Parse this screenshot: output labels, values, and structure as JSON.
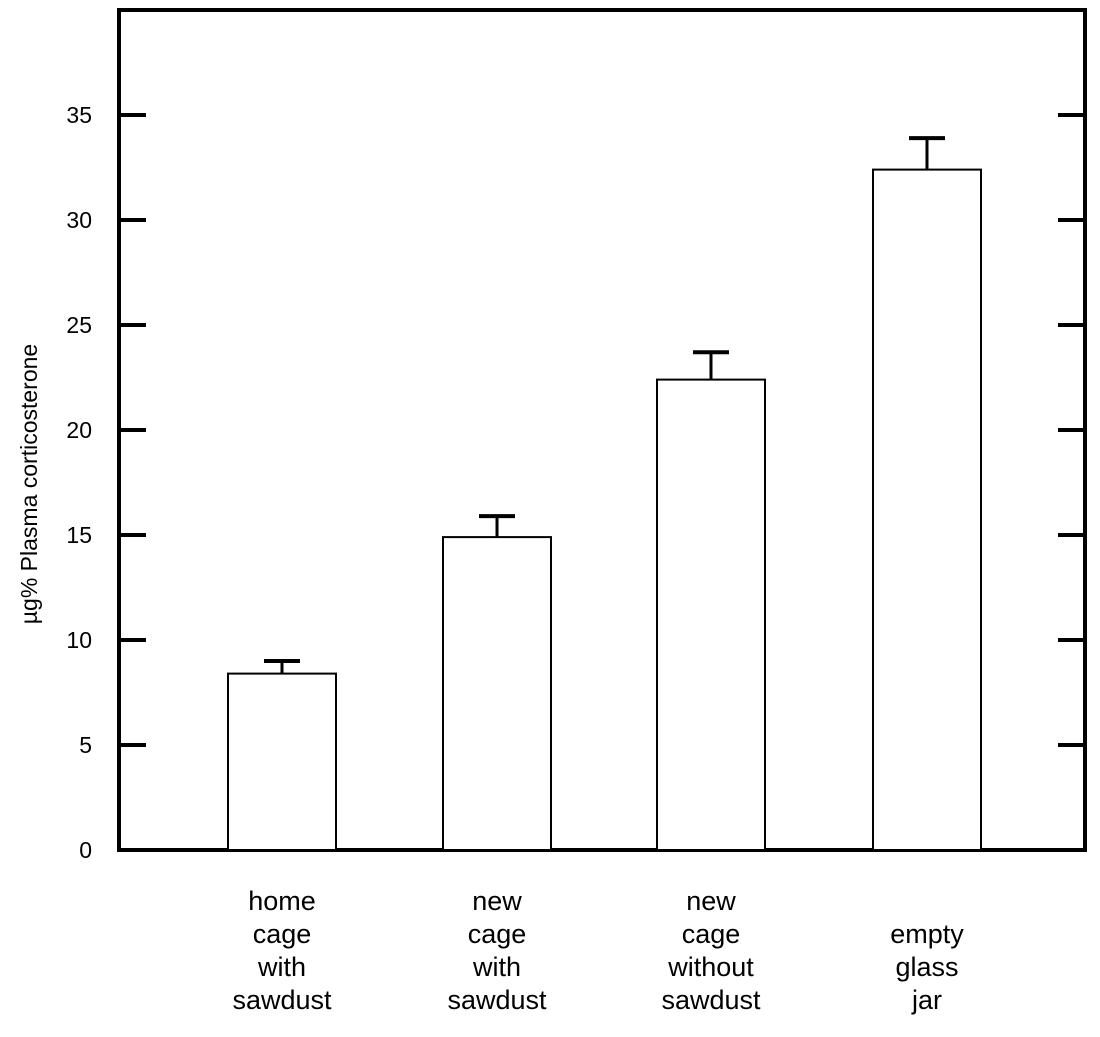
{
  "chart_data": {
    "type": "bar",
    "title": "",
    "xlabel": "",
    "ylabel": "µg% Plasma corticosterone",
    "ylim": [
      0,
      40
    ],
    "yticks": [
      0,
      5,
      10,
      15,
      20,
      25,
      30,
      35
    ],
    "grid": false,
    "categories": [
      [
        "home",
        "cage",
        "with",
        "sawdust"
      ],
      [
        "new",
        "cage",
        "with",
        "sawdust"
      ],
      [
        "new",
        "cage",
        "without",
        "sawdust"
      ],
      [
        "empty",
        "glass",
        "jar"
      ]
    ],
    "values": [
      8.4,
      14.9,
      22.4,
      32.4
    ],
    "error_upper": [
      0.6,
      1.0,
      1.3,
      1.5
    ],
    "colors": {
      "bar_fill": "#ffffff",
      "stroke": "#000000"
    }
  }
}
